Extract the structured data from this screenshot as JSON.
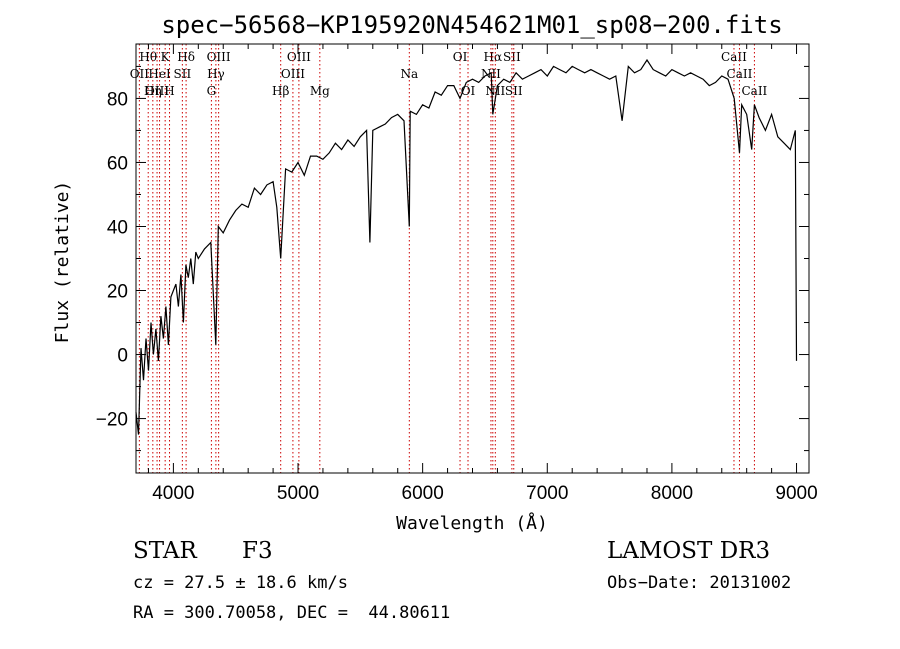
{
  "chart_data": {
    "type": "line",
    "title": "spec−56568−KP195920N454621M01_sp08−200.fits",
    "xlabel": "Wavelength (Å)",
    "ylabel": "Flux (relative)",
    "xlim": [
      3700,
      9100
    ],
    "ylim": [
      -37,
      97
    ],
    "xticks": [
      4000,
      5000,
      6000,
      7000,
      8000,
      9000
    ],
    "xtick_labels": [
      "4000",
      "5000",
      "6000",
      "7000",
      "8000",
      "9000"
    ],
    "yticks": [
      -20,
      0,
      20,
      40,
      60,
      80
    ],
    "ytick_labels": [
      "−20",
      "0",
      "20",
      "40",
      "60",
      "80"
    ],
    "grid": false,
    "series": [
      {
        "x": [
          3700,
          3720,
          3740,
          3760,
          3780,
          3800,
          3820,
          3840,
          3860,
          3880,
          3900,
          3920,
          3940,
          3960,
          3980,
          4000,
          4020,
          4040,
          4060,
          4080,
          4100,
          4120,
          4140,
          4160,
          4180,
          4200,
          4250,
          4300,
          4340,
          4360,
          4400,
          4450,
          4500,
          4550,
          4600,
          4650,
          4700,
          4750,
          4800,
          4830,
          4861,
          4900,
          4950,
          5000,
          5050,
          5100,
          5150,
          5200,
          5250,
          5300,
          5350,
          5400,
          5450,
          5500,
          5550,
          5577,
          5600,
          5650,
          5700,
          5750,
          5800,
          5850,
          5893,
          5900,
          5950,
          6000,
          6050,
          6100,
          6150,
          6200,
          6250,
          6300,
          6350,
          6400,
          6450,
          6500,
          6550,
          6563,
          6600,
          6650,
          6700,
          6750,
          6800,
          6850,
          6900,
          6950,
          7000,
          7050,
          7100,
          7150,
          7200,
          7250,
          7300,
          7350,
          7400,
          7450,
          7500,
          7550,
          7600,
          7650,
          7700,
          7750,
          7800,
          7850,
          7900,
          7950,
          8000,
          8050,
          8100,
          8150,
          8200,
          8250,
          8300,
          8350,
          8400,
          8450,
          8500,
          8542,
          8560,
          8600,
          8640,
          8662,
          8700,
          8750,
          8800,
          8850,
          8900,
          8950,
          8990,
          9000
        ],
        "y": [
          -18,
          -25,
          2,
          -8,
          5,
          -5,
          10,
          0,
          8,
          -2,
          12,
          5,
          15,
          3,
          18,
          20,
          22,
          15,
          25,
          10,
          28,
          24,
          30,
          22,
          32,
          30,
          33,
          35,
          3,
          40,
          38,
          42,
          45,
          47,
          46,
          52,
          50,
          53,
          54,
          46,
          30,
          58,
          57,
          60,
          56,
          62,
          62,
          61,
          63,
          66,
          64,
          67,
          65,
          68,
          70,
          35,
          70,
          71,
          72,
          74,
          75,
          73,
          40,
          76,
          75,
          78,
          77,
          82,
          81,
          84,
          84,
          80,
          85,
          86,
          85,
          87,
          88,
          75,
          84,
          86,
          85,
          88,
          86,
          87,
          88,
          89,
          87,
          90,
          89,
          88,
          90,
          89,
          88,
          89,
          88,
          87,
          86,
          87,
          73,
          90,
          88,
          89,
          92,
          89,
          88,
          87,
          89,
          88,
          87,
          88,
          87,
          86,
          84,
          85,
          87,
          86,
          80,
          63,
          78,
          75,
          64,
          78,
          74,
          70,
          75,
          68,
          66,
          64,
          70,
          -2
        ]
      }
    ],
    "lines": [
      {
        "name": "Hθ",
        "x": 3798,
        "row": 0
      },
      {
        "name": "OII",
        "x": 3727,
        "row": 1
      },
      {
        "name": "OIII",
        "x": 3869,
        "row": 2
      },
      {
        "name": "K",
        "x": 3934,
        "row": 0
      },
      {
        "name": "HeI",
        "x": 3889,
        "row": 1
      },
      {
        "name": "Hη",
        "x": 3835,
        "row": 2
      },
      {
        "name": "Hδ",
        "x": 4102,
        "row": 0
      },
      {
        "name": "SII",
        "x": 4072,
        "row": 1
      },
      {
        "name": "H",
        "x": 3969,
        "row": 2
      },
      {
        "name": "OIII",
        "x": 4363,
        "row": 0
      },
      {
        "name": "Hγ",
        "x": 4341,
        "row": 1
      },
      {
        "name": "G",
        "x": 4305,
        "row": 2
      },
      {
        "name": "OIII",
        "x": 5007,
        "row": 0
      },
      {
        "name": "OIII",
        "x": 4959,
        "row": 1
      },
      {
        "name": "Hβ",
        "x": 4861,
        "row": 2
      },
      {
        "name": "Mg",
        "x": 5175,
        "row": 2
      },
      {
        "name": "Na",
        "x": 5893,
        "row": 1
      },
      {
        "name": "OI",
        "x": 6300,
        "row": 0
      },
      {
        "name": "OI",
        "x": 6364,
        "row": 2
      },
      {
        "name": "Hα",
        "x": 6563,
        "row": 0
      },
      {
        "name": "NII",
        "x": 6548,
        "row": 1
      },
      {
        "name": "NII",
        "x": 6583,
        "row": 2
      },
      {
        "name": "SII",
        "x": 6716,
        "row": 0
      },
      {
        "name": "SII",
        "x": 6731,
        "row": 2
      },
      {
        "name": "CaII",
        "x": 8498,
        "row": 0
      },
      {
        "name": "CaII",
        "x": 8542,
        "row": 1
      },
      {
        "name": "CaII",
        "x": 8662,
        "row": 2
      }
    ],
    "line_color": "#cc0000",
    "trace_color": "#000000"
  },
  "info": {
    "class": "STAR",
    "subclass": "F3",
    "survey": "LAMOST DR3",
    "cz": "cz = 27.5 ± 18.6 km/s",
    "obs_date": "Obs−Date: 20131002",
    "coords": "RA = 300.70058, DEC =  44.80611"
  }
}
